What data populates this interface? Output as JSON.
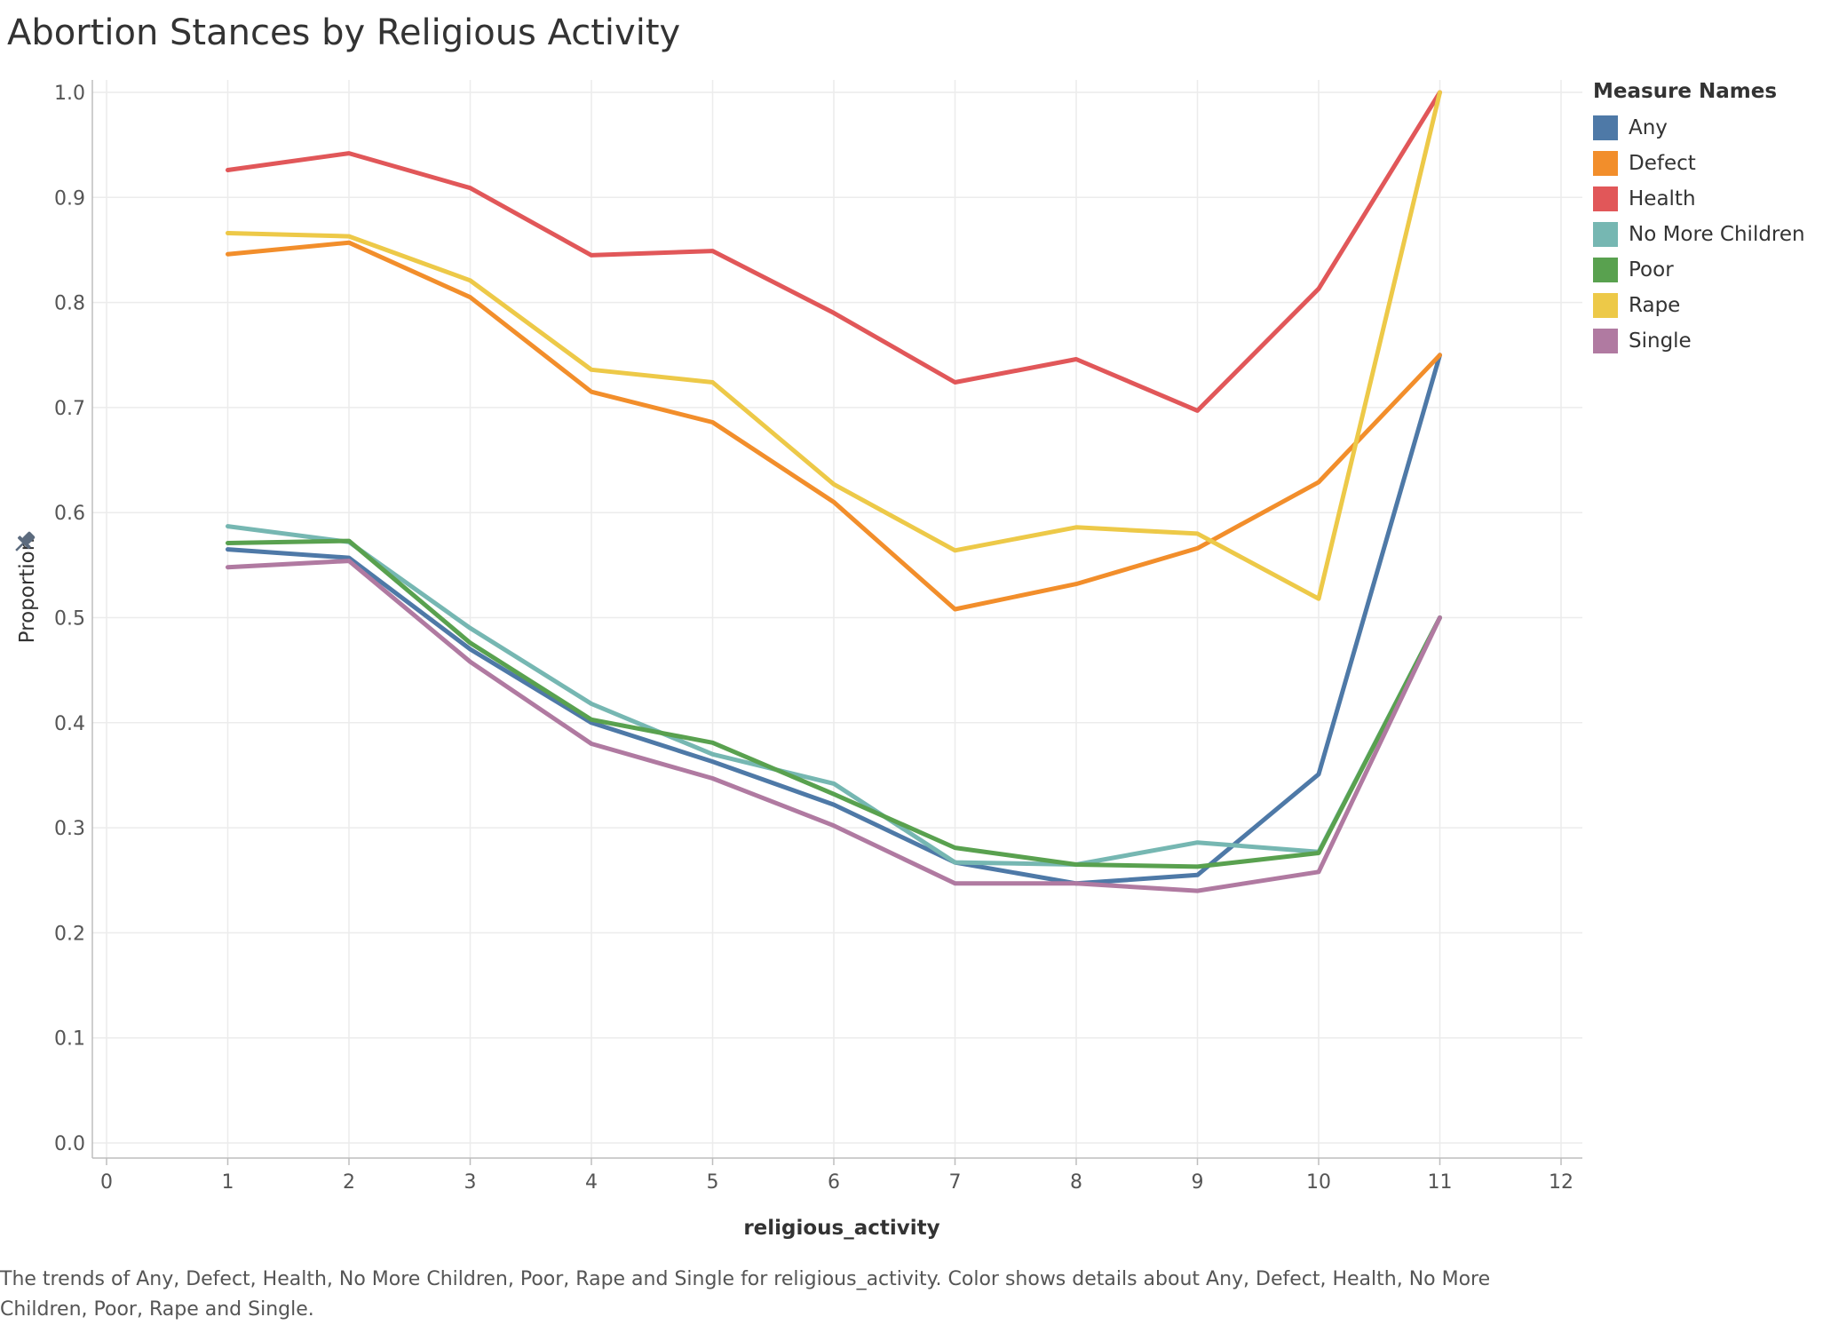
{
  "chart_data": {
    "type": "line",
    "title": "Abortion Stances by Religious Activity",
    "xlabel": "religious_activity",
    "ylabel": "Proportion",
    "xlim": [
      0,
      12
    ],
    "ylim": [
      0,
      1.0
    ],
    "x_ticks": [
      "0",
      "1",
      "2",
      "3",
      "4",
      "5",
      "6",
      "7",
      "8",
      "9",
      "10",
      "11",
      "12"
    ],
    "y_ticks": [
      "0.0",
      "0.1",
      "0.2",
      "0.3",
      "0.4",
      "0.5",
      "0.6",
      "0.7",
      "0.8",
      "0.9",
      "1.0"
    ],
    "grid": true,
    "legend_title": "Measure Names",
    "legend_position": "right",
    "x": [
      1,
      2,
      3,
      4,
      5,
      6,
      7,
      8,
      9,
      10,
      11
    ],
    "series": [
      {
        "name": "Any",
        "color": "#4e79a7",
        "values": [
          0.565,
          0.557,
          0.47,
          0.4,
          0.363,
          0.322,
          0.267,
          0.247,
          0.255,
          0.351,
          0.75
        ]
      },
      {
        "name": "Defect",
        "color": "#f28e2b",
        "values": [
          0.846,
          0.857,
          0.805,
          0.715,
          0.686,
          0.61,
          0.508,
          0.532,
          0.566,
          0.629,
          0.75
        ]
      },
      {
        "name": "Health",
        "color": "#e15759",
        "values": [
          0.926,
          0.942,
          0.909,
          0.845,
          0.849,
          0.79,
          0.724,
          0.746,
          0.697,
          0.813,
          1.0
        ]
      },
      {
        "name": "No More Children",
        "color": "#76b7b2",
        "values": [
          0.587,
          0.572,
          0.49,
          0.418,
          0.37,
          0.342,
          0.267,
          0.265,
          0.286,
          0.277,
          0.5
        ]
      },
      {
        "name": "Poor",
        "color": "#59a14f",
        "values": [
          0.571,
          0.573,
          0.476,
          0.403,
          0.381,
          0.332,
          0.281,
          0.265,
          0.263,
          0.276,
          0.5
        ]
      },
      {
        "name": "Rape",
        "color": "#edc948",
        "values": [
          0.866,
          0.863,
          0.821,
          0.736,
          0.724,
          0.627,
          0.564,
          0.586,
          0.58,
          0.518,
          1.0
        ]
      },
      {
        "name": "Single",
        "color": "#b07aa1",
        "values": [
          0.548,
          0.554,
          0.458,
          0.38,
          0.347,
          0.302,
          0.247,
          0.247,
          0.24,
          0.258,
          0.5
        ]
      }
    ]
  },
  "caption": "The trends of Any, Defect, Health, No More Children, Poor, Rape and Single for religious_activity.  Color shows details about Any, Defect, Health, No More Children, Poor, Rape and Single."
}
